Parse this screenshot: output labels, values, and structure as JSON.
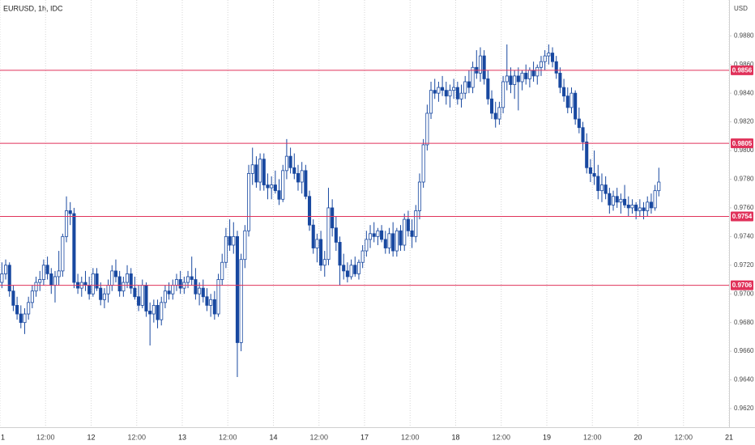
{
  "chart_data": {
    "type": "candlestick",
    "title": "EURUSD, 1h, IDC",
    "y_axis_label": "USD",
    "up_color": "#ffffff",
    "down_color": "#1848a0",
    "wick_color": "#1848a0",
    "level_color": "#e0325a",
    "grid": "x",
    "xlim": [
      0,
      192
    ],
    "ylim": [
      0.9607,
      0.9905
    ],
    "xticks": [
      {
        "value": 0,
        "label": "1"
      },
      {
        "value": 12,
        "label": "12:00"
      },
      {
        "value": 24,
        "label": "12"
      },
      {
        "value": 36,
        "label": "12:00"
      },
      {
        "value": 48,
        "label": "13"
      },
      {
        "value": 60,
        "label": "12:00"
      },
      {
        "value": 72,
        "label": "14"
      },
      {
        "value": 84,
        "label": "12:00"
      },
      {
        "value": 96,
        "label": "17"
      },
      {
        "value": 108,
        "label": "12:00"
      },
      {
        "value": 120,
        "label": "18"
      },
      {
        "value": 132,
        "label": "12:00"
      },
      {
        "value": 144,
        "label": "19"
      },
      {
        "value": 156,
        "label": "12:00"
      },
      {
        "value": 168,
        "label": "20"
      },
      {
        "value": 180,
        "label": "12:00"
      },
      {
        "value": 192,
        "label": "21"
      }
    ],
    "yticks": [
      {
        "value": 0.962,
        "label": "0.9620"
      },
      {
        "value": 0.964,
        "label": "0.9640"
      },
      {
        "value": 0.966,
        "label": "0.9660"
      },
      {
        "value": 0.968,
        "label": "0.9680"
      },
      {
        "value": 0.97,
        "label": "0.9700"
      },
      {
        "value": 0.972,
        "label": "0.9720"
      },
      {
        "value": 0.974,
        "label": "0.9740"
      },
      {
        "value": 0.976,
        "label": "0.9760"
      },
      {
        "value": 0.978,
        "label": "0.9780"
      },
      {
        "value": 0.98,
        "label": "0.9800"
      },
      {
        "value": 0.982,
        "label": "0.9820"
      },
      {
        "value": 0.984,
        "label": "0.9840"
      },
      {
        "value": 0.986,
        "label": "0.9860"
      },
      {
        "value": 0.988,
        "label": "0.9880"
      }
    ],
    "levels": [
      {
        "value": 0.9856,
        "label": "0.9856"
      },
      {
        "value": 0.9805,
        "label": "0.9805"
      },
      {
        "value": 0.9754,
        "label": "0.9754"
      },
      {
        "value": 0.9706,
        "label": "0.9706"
      }
    ],
    "candles": [
      [
        0.9708,
        0.9722,
        0.9704,
        0.9714
      ],
      [
        0.9714,
        0.9724,
        0.971,
        0.972
      ],
      [
        0.972,
        0.9722,
        0.9698,
        0.9702
      ],
      [
        0.9702,
        0.9706,
        0.9688,
        0.9692
      ],
      [
        0.9692,
        0.9698,
        0.9682,
        0.9686
      ],
      [
        0.9686,
        0.9692,
        0.9676,
        0.968
      ],
      [
        0.968,
        0.969,
        0.9672,
        0.9686
      ],
      [
        0.9686,
        0.9698,
        0.9682,
        0.9694
      ],
      [
        0.9694,
        0.9706,
        0.969,
        0.9702
      ],
      [
        0.9702,
        0.9712,
        0.9698,
        0.9708
      ],
      [
        0.9708,
        0.9716,
        0.9702,
        0.971
      ],
      [
        0.971,
        0.9724,
        0.9706,
        0.972
      ],
      [
        0.972,
        0.9726,
        0.971,
        0.9714
      ],
      [
        0.9714,
        0.9718,
        0.97,
        0.9706
      ],
      [
        0.9706,
        0.9716,
        0.9694,
        0.9712
      ],
      [
        0.9712,
        0.973,
        0.9706,
        0.9716
      ],
      [
        0.9716,
        0.9742,
        0.9712,
        0.974
      ],
      [
        0.974,
        0.9768,
        0.9736,
        0.9758
      ],
      [
        0.9758,
        0.9764,
        0.9748,
        0.9756
      ],
      [
        0.9756,
        0.976,
        0.9704,
        0.9708
      ],
      [
        0.9708,
        0.9714,
        0.97,
        0.9704
      ],
      [
        0.9704,
        0.9712,
        0.9698,
        0.9708
      ],
      [
        0.9708,
        0.9716,
        0.9702,
        0.9706
      ],
      [
        0.9706,
        0.9712,
        0.9696,
        0.97
      ],
      [
        0.97,
        0.9718,
        0.9698,
        0.9714
      ],
      [
        0.9714,
        0.9718,
        0.9702,
        0.9704
      ],
      [
        0.9704,
        0.9708,
        0.9692,
        0.9696
      ],
      [
        0.9696,
        0.9704,
        0.969,
        0.97
      ],
      [
        0.97,
        0.971,
        0.9694,
        0.9706
      ],
      [
        0.9706,
        0.972,
        0.9702,
        0.9716
      ],
      [
        0.9716,
        0.9724,
        0.9708,
        0.9712
      ],
      [
        0.9712,
        0.9716,
        0.9698,
        0.9702
      ],
      [
        0.9702,
        0.9712,
        0.9698,
        0.9708
      ],
      [
        0.9708,
        0.972,
        0.9704,
        0.9714
      ],
      [
        0.9714,
        0.9718,
        0.97,
        0.9704
      ],
      [
        0.9704,
        0.9712,
        0.9696,
        0.9698
      ],
      [
        0.9698,
        0.9706,
        0.9688,
        0.9692
      ],
      [
        0.9692,
        0.971,
        0.969,
        0.9706
      ],
      [
        0.9706,
        0.9708,
        0.9684,
        0.9688
      ],
      [
        0.9688,
        0.9694,
        0.9664,
        0.9686
      ],
      [
        0.9686,
        0.9696,
        0.968,
        0.9692
      ],
      [
        0.9692,
        0.9696,
        0.9676,
        0.9682
      ],
      [
        0.9682,
        0.9698,
        0.9678,
        0.9694
      ],
      [
        0.9694,
        0.9706,
        0.969,
        0.9702
      ],
      [
        0.9702,
        0.9708,
        0.9696,
        0.97
      ],
      [
        0.97,
        0.971,
        0.9696,
        0.9706
      ],
      [
        0.9706,
        0.9714,
        0.9702,
        0.971
      ],
      [
        0.971,
        0.9716,
        0.97,
        0.9704
      ],
      [
        0.9704,
        0.9712,
        0.97,
        0.9708
      ],
      [
        0.9708,
        0.9716,
        0.9704,
        0.9712
      ],
      [
        0.9712,
        0.9726,
        0.9706,
        0.971
      ],
      [
        0.971,
        0.9718,
        0.9696,
        0.97
      ],
      [
        0.97,
        0.9708,
        0.9692,
        0.9704
      ],
      [
        0.9704,
        0.971,
        0.9694,
        0.9698
      ],
      [
        0.9698,
        0.9704,
        0.9688,
        0.9692
      ],
      [
        0.9692,
        0.97,
        0.9684,
        0.9696
      ],
      [
        0.9696,
        0.9702,
        0.9682,
        0.9686
      ],
      [
        0.9686,
        0.9714,
        0.9684,
        0.971
      ],
      [
        0.971,
        0.9728,
        0.9706,
        0.9722
      ],
      [
        0.9722,
        0.9746,
        0.9718,
        0.974
      ],
      [
        0.974,
        0.9752,
        0.973,
        0.9734
      ],
      [
        0.9734,
        0.975,
        0.9728,
        0.974
      ],
      [
        0.974,
        0.9744,
        0.9642,
        0.9666
      ],
      [
        0.9666,
        0.9728,
        0.966,
        0.9724
      ],
      [
        0.9724,
        0.9748,
        0.9718,
        0.9744
      ],
      [
        0.9744,
        0.979,
        0.974,
        0.9784
      ],
      [
        0.9784,
        0.9802,
        0.9776,
        0.979
      ],
      [
        0.979,
        0.9796,
        0.9774,
        0.9778
      ],
      [
        0.9778,
        0.9798,
        0.9772,
        0.9794
      ],
      [
        0.9794,
        0.9798,
        0.9772,
        0.9776
      ],
      [
        0.9776,
        0.9784,
        0.9766,
        0.9774
      ],
      [
        0.9774,
        0.9782,
        0.9766,
        0.9776
      ],
      [
        0.9776,
        0.9786,
        0.977,
        0.9772
      ],
      [
        0.9772,
        0.978,
        0.9762,
        0.9766
      ],
      [
        0.9766,
        0.979,
        0.9764,
        0.9786
      ],
      [
        0.9786,
        0.9808,
        0.978,
        0.9796
      ],
      [
        0.9796,
        0.9802,
        0.9784,
        0.9788
      ],
      [
        0.9788,
        0.9798,
        0.978,
        0.9784
      ],
      [
        0.9784,
        0.979,
        0.9772,
        0.9778
      ],
      [
        0.9778,
        0.9792,
        0.977,
        0.9786
      ],
      [
        0.9786,
        0.979,
        0.9766,
        0.9768
      ],
      [
        0.9768,
        0.9772,
        0.9744,
        0.9748
      ],
      [
        0.9748,
        0.9752,
        0.9728,
        0.9732
      ],
      [
        0.9732,
        0.9742,
        0.9722,
        0.9738
      ],
      [
        0.9738,
        0.9744,
        0.9716,
        0.972
      ],
      [
        0.972,
        0.973,
        0.9712,
        0.9724
      ],
      [
        0.9724,
        0.9774,
        0.972,
        0.976
      ],
      [
        0.976,
        0.9766,
        0.974,
        0.9746
      ],
      [
        0.9746,
        0.9754,
        0.973,
        0.9736
      ],
      [
        0.9736,
        0.974,
        0.9706,
        0.972
      ],
      [
        0.972,
        0.9728,
        0.971,
        0.9716
      ],
      [
        0.9716,
        0.9722,
        0.9708,
        0.9712
      ],
      [
        0.9712,
        0.9724,
        0.971,
        0.972
      ],
      [
        0.972,
        0.9726,
        0.9712,
        0.9714
      ],
      [
        0.9714,
        0.9724,
        0.971,
        0.9722
      ],
      [
        0.9722,
        0.9734,
        0.9718,
        0.973
      ],
      [
        0.973,
        0.9744,
        0.9726,
        0.9738
      ],
      [
        0.9738,
        0.9748,
        0.9732,
        0.9742
      ],
      [
        0.9742,
        0.975,
        0.9736,
        0.974
      ],
      [
        0.974,
        0.9746,
        0.9734,
        0.9744
      ],
      [
        0.9744,
        0.9748,
        0.9736,
        0.9738
      ],
      [
        0.9738,
        0.9744,
        0.9728,
        0.9732
      ],
      [
        0.9732,
        0.9746,
        0.9728,
        0.9742
      ],
      [
        0.9742,
        0.975,
        0.9726,
        0.973
      ],
      [
        0.973,
        0.9746,
        0.9726,
        0.9744
      ],
      [
        0.9744,
        0.9748,
        0.973,
        0.9734
      ],
      [
        0.9734,
        0.9756,
        0.973,
        0.9752
      ],
      [
        0.9752,
        0.9758,
        0.974,
        0.9744
      ],
      [
        0.9744,
        0.9752,
        0.9732,
        0.974
      ],
      [
        0.974,
        0.9762,
        0.9736,
        0.9758
      ],
      [
        0.9758,
        0.9784,
        0.9752,
        0.9778
      ],
      [
        0.9778,
        0.9808,
        0.9774,
        0.9804
      ],
      [
        0.9804,
        0.9832,
        0.98,
        0.9826
      ],
      [
        0.9826,
        0.9848,
        0.9822,
        0.9842
      ],
      [
        0.9842,
        0.985,
        0.9836,
        0.984
      ],
      [
        0.984,
        0.9848,
        0.9834,
        0.9844
      ],
      [
        0.9844,
        0.9852,
        0.9838,
        0.9842
      ],
      [
        0.9842,
        0.9848,
        0.9832,
        0.9838
      ],
      [
        0.9838,
        0.9846,
        0.983,
        0.9842
      ],
      [
        0.9842,
        0.985,
        0.9836,
        0.9844
      ],
      [
        0.9844,
        0.9848,
        0.9832,
        0.9836
      ],
      [
        0.9836,
        0.9846,
        0.983,
        0.984
      ],
      [
        0.984,
        0.9852,
        0.9836,
        0.9848
      ],
      [
        0.9848,
        0.9856,
        0.984,
        0.9844
      ],
      [
        0.9844,
        0.9862,
        0.984,
        0.9858
      ],
      [
        0.9858,
        0.987,
        0.985,
        0.9854
      ],
      [
        0.9854,
        0.9872,
        0.9848,
        0.9866
      ],
      [
        0.9866,
        0.987,
        0.9846,
        0.985
      ],
      [
        0.985,
        0.9856,
        0.9832,
        0.9836
      ],
      [
        0.9836,
        0.9842,
        0.9822,
        0.9826
      ],
      [
        0.9826,
        0.9834,
        0.9816,
        0.9822
      ],
      [
        0.9822,
        0.9834,
        0.9818,
        0.983
      ],
      [
        0.983,
        0.9852,
        0.9826,
        0.9848
      ],
      [
        0.9848,
        0.9874,
        0.9842,
        0.9852
      ],
      [
        0.9852,
        0.9858,
        0.984,
        0.9846
      ],
      [
        0.9846,
        0.9856,
        0.9836,
        0.9852
      ],
      [
        0.9852,
        0.9858,
        0.9828,
        0.9848
      ],
      [
        0.9848,
        0.9856,
        0.9842,
        0.9854
      ],
      [
        0.9854,
        0.986,
        0.9846,
        0.985
      ],
      [
        0.985,
        0.9858,
        0.9844,
        0.9856
      ],
      [
        0.9856,
        0.9862,
        0.9848,
        0.9852
      ],
      [
        0.9852,
        0.986,
        0.9846,
        0.9858
      ],
      [
        0.9858,
        0.9866,
        0.9852,
        0.9862
      ],
      [
        0.9862,
        0.987,
        0.9856,
        0.9866
      ],
      [
        0.9866,
        0.9874,
        0.986,
        0.9868
      ],
      [
        0.9868,
        0.9872,
        0.9858,
        0.9862
      ],
      [
        0.9862,
        0.9866,
        0.985,
        0.9854
      ],
      [
        0.9854,
        0.9858,
        0.984,
        0.9844
      ],
      [
        0.9844,
        0.985,
        0.9834,
        0.9838
      ],
      [
        0.9838,
        0.9844,
        0.9826,
        0.983
      ],
      [
        0.983,
        0.9844,
        0.9826,
        0.984
      ],
      [
        0.984,
        0.9842,
        0.9818,
        0.9822
      ],
      [
        0.9822,
        0.983,
        0.9812,
        0.9816
      ],
      [
        0.9816,
        0.982,
        0.98,
        0.9806
      ],
      [
        0.9806,
        0.9812,
        0.9784,
        0.9788
      ],
      [
        0.9788,
        0.9794,
        0.9778,
        0.9784
      ],
      [
        0.9784,
        0.98,
        0.9776,
        0.9782
      ],
      [
        0.9782,
        0.979,
        0.9766,
        0.9772
      ],
      [
        0.9772,
        0.9784,
        0.9764,
        0.9776
      ],
      [
        0.9776,
        0.9782,
        0.9766,
        0.977
      ],
      [
        0.977,
        0.9774,
        0.9756,
        0.9762
      ],
      [
        0.9762,
        0.9772,
        0.9758,
        0.9768
      ],
      [
        0.9768,
        0.9774,
        0.976,
        0.9764
      ],
      [
        0.9764,
        0.977,
        0.9756,
        0.9766
      ],
      [
        0.9766,
        0.9776,
        0.976,
        0.9762
      ],
      [
        0.9762,
        0.9768,
        0.9754,
        0.976
      ],
      [
        0.976,
        0.9766,
        0.9756,
        0.9762
      ],
      [
        0.9762,
        0.9764,
        0.9752,
        0.9758
      ],
      [
        0.9758,
        0.9766,
        0.9754,
        0.976
      ],
      [
        0.976,
        0.9764,
        0.9752,
        0.9758
      ],
      [
        0.9758,
        0.9768,
        0.9754,
        0.9764
      ],
      [
        0.9764,
        0.977,
        0.9756,
        0.976
      ],
      [
        0.976,
        0.9776,
        0.9758,
        0.9772
      ],
      [
        0.9772,
        0.9788,
        0.9768,
        0.9778
      ]
    ]
  }
}
